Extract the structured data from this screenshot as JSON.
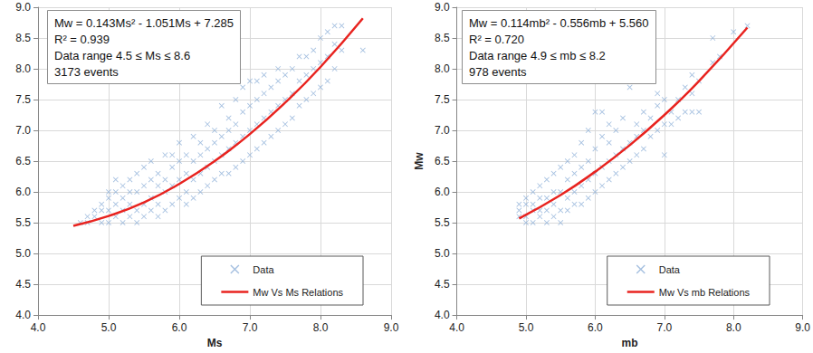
{
  "chart_data": [
    {
      "type": "scatter",
      "annotation": [
        "Mw = 0.143Ms² - 1.051Ms + 7.285",
        "R² = 0.939",
        "Data range 4.5 ≤ Ms ≤ 8.6",
        "3173 events"
      ],
      "xlabel": "Ms",
      "xlim": [
        4,
        9
      ],
      "xticks": [
        {
          "value": 4,
          "label": "4.0"
        },
        {
          "value": 5,
          "label": "5.0"
        },
        {
          "value": 6,
          "label": "6.0"
        },
        {
          "value": 7,
          "label": "7.0"
        },
        {
          "value": 8,
          "label": "8.0"
        },
        {
          "value": 9,
          "label": "9.0"
        }
      ],
      "ylim": [
        4,
        9
      ],
      "yticks": [
        {
          "value": 4,
          "label": "4.0"
        },
        4.5,
        {
          "value": 5,
          "label": "5.0"
        },
        5.5,
        {
          "value": 6,
          "label": "6.0"
        },
        6.5,
        {
          "value": 7,
          "label": "7.0"
        },
        7.5,
        {
          "value": 8,
          "label": "8.0"
        },
        8.5,
        {
          "value": 9,
          "label": "9.0"
        }
      ],
      "grid": true,
      "legend": "lower right",
      "series": [
        {
          "name": "Data",
          "type": "scatter",
          "marker": "x",
          "color": "#8fb0d8",
          "x": [
            4.6,
            4.7,
            4.7,
            4.8,
            4.8,
            4.9,
            4.9,
            4.9,
            5.0,
            5.0,
            5.0,
            5.0,
            5.1,
            5.1,
            5.1,
            5.1,
            5.2,
            5.2,
            5.2,
            5.2,
            5.3,
            5.3,
            5.3,
            5.3,
            5.4,
            5.4,
            5.4,
            5.4,
            5.5,
            5.5,
            5.5,
            5.5,
            5.6,
            5.6,
            5.6,
            5.6,
            5.7,
            5.7,
            5.7,
            5.7,
            5.8,
            5.8,
            5.8,
            5.8,
            5.9,
            5.9,
            5.9,
            5.9,
            6.0,
            6.0,
            6.0,
            6.0,
            6.1,
            6.1,
            6.1,
            6.1,
            6.2,
            6.2,
            6.2,
            6.2,
            6.3,
            6.3,
            6.3,
            6.3,
            6.4,
            6.4,
            6.4,
            6.4,
            6.5,
            6.5,
            6.5,
            6.5,
            6.6,
            6.6,
            6.6,
            6.6,
            6.7,
            6.7,
            6.7,
            6.7,
            6.8,
            6.8,
            6.8,
            6.8,
            6.9,
            6.9,
            6.9,
            6.9,
            7.0,
            7.0,
            7.0,
            7.0,
            7.1,
            7.1,
            7.1,
            7.1,
            7.2,
            7.2,
            7.2,
            7.2,
            7.3,
            7.3,
            7.3,
            7.4,
            7.4,
            7.4,
            7.4,
            7.5,
            7.5,
            7.5,
            7.6,
            7.6,
            7.6,
            7.7,
            7.7,
            7.7,
            7.8,
            7.8,
            7.8,
            7.9,
            7.9,
            7.9,
            8.0,
            8.0,
            8.0,
            8.1,
            8.1,
            8.1,
            8.2,
            8.2,
            8.2,
            8.3,
            8.3,
            8.6
          ],
          "values": [
            5.5,
            5.5,
            5.6,
            5.6,
            5.7,
            5.5,
            5.7,
            5.8,
            5.5,
            5.7,
            5.9,
            6.0,
            5.6,
            5.8,
            6.0,
            6.2,
            5.5,
            5.7,
            5.9,
            6.1,
            5.6,
            5.8,
            6.0,
            6.2,
            5.5,
            5.7,
            6.0,
            6.3,
            5.6,
            5.8,
            6.1,
            6.4,
            5.7,
            5.9,
            6.2,
            6.5,
            5.6,
            5.8,
            6.1,
            6.3,
            5.7,
            6.0,
            6.2,
            6.6,
            5.8,
            6.1,
            6.4,
            6.6,
            5.9,
            6.2,
            6.5,
            6.8,
            5.8,
            6.0,
            6.3,
            6.6,
            5.9,
            6.2,
            6.5,
            6.9,
            6.0,
            6.3,
            6.6,
            6.8,
            6.1,
            6.4,
            6.7,
            7.1,
            6.2,
            6.5,
            6.8,
            7.0,
            6.3,
            6.6,
            6.9,
            7.4,
            6.3,
            6.7,
            7.0,
            7.2,
            6.4,
            6.8,
            7.1,
            7.5,
            6.5,
            6.9,
            7.3,
            7.7,
            6.6,
            7.0,
            7.4,
            7.8,
            6.7,
            7.1,
            7.5,
            7.8,
            6.8,
            7.2,
            7.6,
            7.9,
            6.9,
            7.3,
            7.7,
            7.0,
            7.4,
            7.8,
            8.0,
            7.1,
            7.5,
            7.9,
            7.2,
            7.6,
            8.0,
            7.4,
            7.8,
            8.2,
            7.5,
            7.9,
            8.2,
            7.6,
            8.0,
            8.3,
            7.7,
            8.1,
            8.5,
            7.8,
            8.2,
            8.6,
            8.0,
            8.4,
            8.7,
            8.3,
            8.7,
            8.3
          ]
        },
        {
          "name": "Mw Vs Ms Relations",
          "type": "line",
          "line_style": "solid",
          "color": "#e8231f",
          "x": [
            4.5,
            5.0,
            5.5,
            6.0,
            6.5,
            7.0,
            7.5,
            8.0,
            8.6
          ],
          "values": [
            5.45,
            5.61,
            5.83,
            6.13,
            6.5,
            6.94,
            7.45,
            8.03,
            8.82
          ]
        }
      ]
    },
    {
      "type": "scatter",
      "annotation": [
        "Mw = 0.114mb² - 0.556mb + 5.560",
        "R² = 0.720",
        "Data range 4.9 ≤ mb ≤ 8.2",
        "978 events"
      ],
      "xlabel": "mb",
      "ylabel": "Mw",
      "xlim": [
        4,
        9
      ],
      "xticks": [
        {
          "value": 4,
          "label": "4.0"
        },
        {
          "value": 5,
          "label": "5.0"
        },
        {
          "value": 6,
          "label": "6.0"
        },
        {
          "value": 7,
          "label": "7.0"
        },
        {
          "value": 8,
          "label": "8.0"
        },
        {
          "value": 9,
          "label": "9.0"
        }
      ],
      "ylim": [
        4,
        9
      ],
      "yticks": [
        {
          "value": 4,
          "label": "4.0"
        },
        4.5,
        {
          "value": 5,
          "label": "5.0"
        },
        5.5,
        {
          "value": 6,
          "label": "6.0"
        },
        6.5,
        {
          "value": 7,
          "label": "7.0"
        },
        7.5,
        {
          "value": 8,
          "label": "8.0"
        },
        8.5,
        {
          "value": 9,
          "label": "9.0"
        }
      ],
      "grid": true,
      "legend": "lower right",
      "series": [
        {
          "name": "Data",
          "type": "scatter",
          "marker": "x",
          "color": "#8fb0d8",
          "x": [
            4.9,
            4.9,
            4.9,
            5.0,
            5.0,
            5.0,
            5.0,
            5.1,
            5.1,
            5.1,
            5.1,
            5.2,
            5.2,
            5.2,
            5.2,
            5.3,
            5.3,
            5.3,
            5.3,
            5.4,
            5.4,
            5.4,
            5.4,
            5.5,
            5.5,
            5.5,
            5.5,
            5.6,
            5.6,
            5.6,
            5.6,
            5.7,
            5.7,
            5.7,
            5.7,
            5.8,
            5.8,
            5.8,
            5.8,
            5.9,
            5.9,
            5.9,
            5.9,
            6.0,
            6.0,
            6.0,
            6.0,
            6.1,
            6.1,
            6.1,
            6.1,
            6.2,
            6.2,
            6.2,
            6.2,
            6.3,
            6.3,
            6.3,
            6.4,
            6.4,
            6.4,
            6.5,
            6.5,
            6.5,
            6.6,
            6.6,
            6.6,
            6.7,
            6.7,
            6.7,
            6.8,
            6.8,
            6.9,
            6.9,
            6.9,
            7.0,
            7.0,
            7.0,
            7.1,
            7.1,
            7.2,
            7.2,
            7.3,
            7.3,
            7.4,
            7.4,
            7.4,
            7.5,
            7.5,
            7.7,
            7.7,
            7.8,
            8.0,
            8.2
          ],
          "values": [
            5.6,
            5.7,
            5.8,
            5.5,
            5.6,
            5.8,
            5.9,
            5.5,
            5.7,
            5.8,
            6.0,
            5.6,
            5.7,
            5.9,
            6.1,
            5.5,
            5.7,
            5.9,
            6.2,
            5.6,
            5.8,
            6.0,
            6.3,
            5.5,
            5.7,
            6.0,
            6.4,
            5.7,
            5.9,
            6.2,
            6.5,
            5.8,
            6.0,
            6.3,
            6.6,
            5.8,
            6.1,
            6.4,
            6.8,
            5.9,
            6.2,
            6.5,
            7.0,
            6.0,
            6.3,
            6.7,
            7.3,
            6.1,
            6.4,
            6.9,
            7.3,
            6.2,
            6.5,
            6.8,
            7.1,
            6.3,
            6.6,
            7.0,
            6.4,
            6.7,
            7.2,
            6.5,
            6.8,
            7.7,
            6.6,
            6.9,
            7.1,
            6.7,
            7.0,
            7.3,
            6.9,
            7.2,
            7.0,
            7.4,
            7.6,
            6.6,
            7.1,
            7.5,
            7.1,
            7.3,
            7.2,
            7.5,
            7.3,
            7.7,
            7.3,
            7.6,
            7.9,
            7.3,
            7.8,
            8.1,
            8.5,
            8.2,
            8.6,
            8.7
          ]
        },
        {
          "name": "Mw Vs mb Relations",
          "type": "line",
          "line_style": "solid",
          "color": "#e8231f",
          "x": [
            4.9,
            5.5,
            6.0,
            6.5,
            7.0,
            7.5,
            8.2
          ],
          "values": [
            5.57,
            5.95,
            6.33,
            6.76,
            7.25,
            7.8,
            8.67
          ]
        }
      ]
    }
  ]
}
